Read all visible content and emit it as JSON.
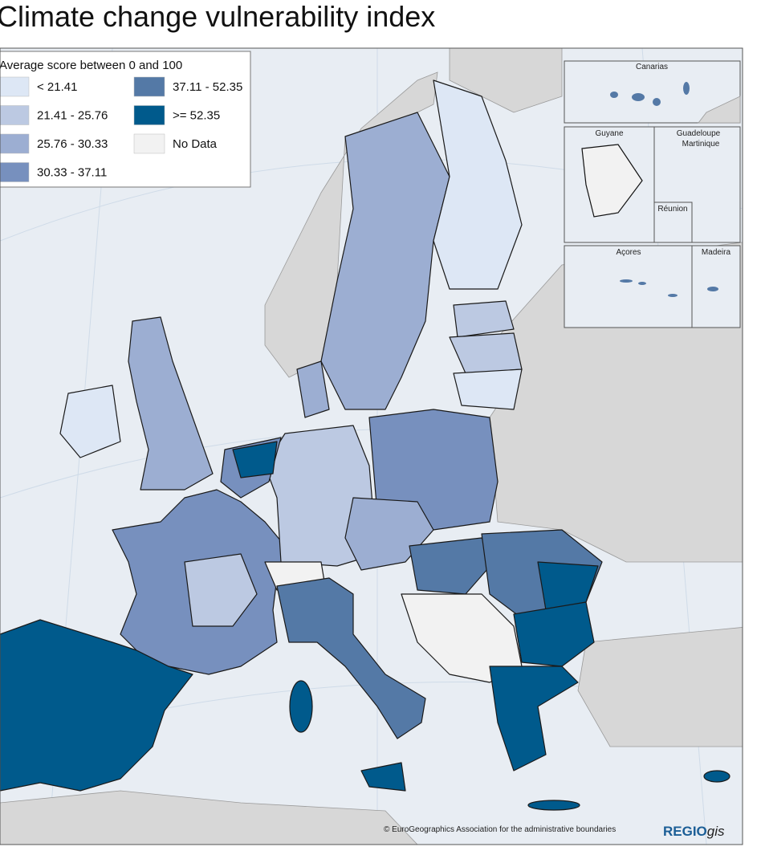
{
  "title": "Climate change vulnerability index",
  "legend": {
    "title": "Average score between 0 and 100",
    "items": [
      {
        "label": "< 21.41",
        "color": "#dde7f5"
      },
      {
        "label": "21.41 - 25.76",
        "color": "#bcc9e2"
      },
      {
        "label": "25.76 - 30.33",
        "color": "#9caed2"
      },
      {
        "label": "30.33 - 37.11",
        "color": "#7790be"
      },
      {
        "label": "37.11 - 52.35",
        "color": "#5479a6"
      },
      {
        "label": ">= 52.35",
        "color": "#005a8c"
      },
      {
        "label": "No Data",
        "color": "#f2f2f2"
      }
    ]
  },
  "insets": [
    "Canarias",
    "Guyane",
    "Guadeloupe",
    "Martinique",
    "Réunion",
    "Açores",
    "Madeira"
  ],
  "credit": "© EuroGeographics Association for the administrative boundaries",
  "logo": {
    "bold": "REGIO",
    "italic": "gis"
  }
}
